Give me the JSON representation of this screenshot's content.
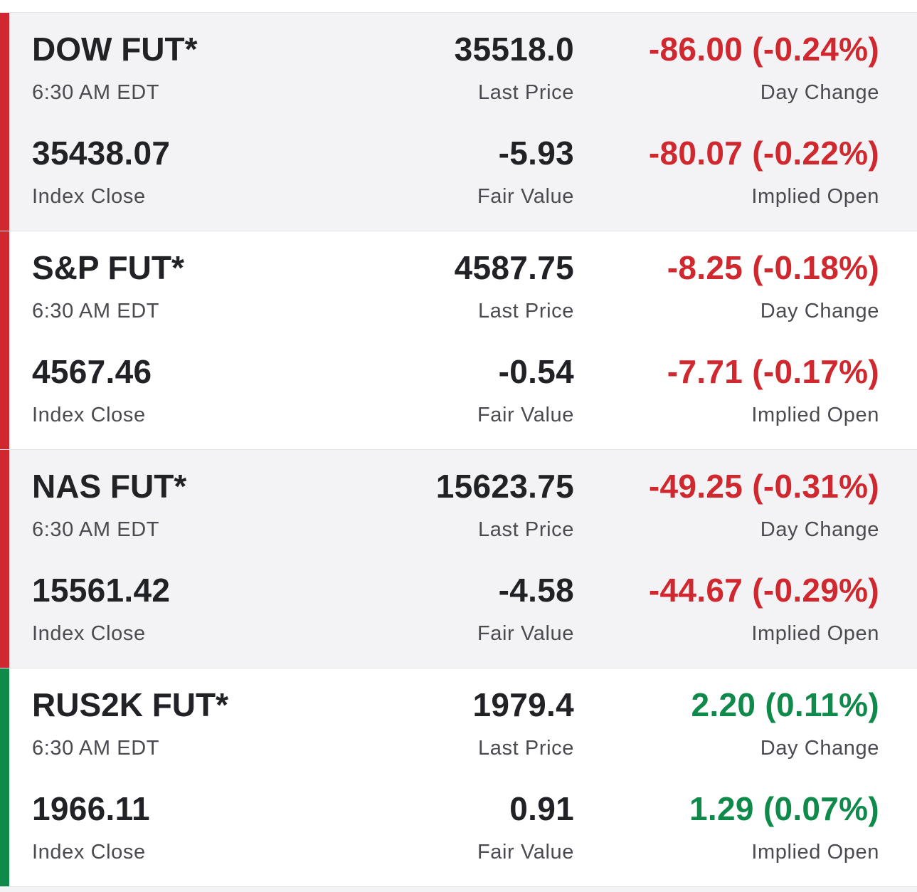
{
  "colors": {
    "negative": "#d0282f",
    "positive": "#0f8a4b"
  },
  "futures": [
    {
      "name": "DOW FUT*",
      "time": "6:30 AM EDT",
      "last_price": "35518.0",
      "last_price_label": "Last Price",
      "day_change": "-86.00 (-0.24%)",
      "day_change_label": "Day Change",
      "index_close": "35438.07",
      "index_close_label": "Index Close",
      "fair_value": "-5.93",
      "fair_value_label": "Fair Value",
      "implied_open": "-80.07 (-0.22%)",
      "implied_open_label": "Implied Open",
      "direction": "negative"
    },
    {
      "name": "S&P FUT*",
      "time": "6:30 AM EDT",
      "last_price": "4587.75",
      "last_price_label": "Last Price",
      "day_change": "-8.25 (-0.18%)",
      "day_change_label": "Day Change",
      "index_close": "4567.46",
      "index_close_label": "Index Close",
      "fair_value": "-0.54",
      "fair_value_label": "Fair Value",
      "implied_open": "-7.71 (-0.17%)",
      "implied_open_label": "Implied Open",
      "direction": "negative"
    },
    {
      "name": "NAS FUT*",
      "time": "6:30 AM EDT",
      "last_price": "15623.75",
      "last_price_label": "Last Price",
      "day_change": "-49.25 (-0.31%)",
      "day_change_label": "Day Change",
      "index_close": "15561.42",
      "index_close_label": "Index Close",
      "fair_value": "-4.58",
      "fair_value_label": "Fair Value",
      "implied_open": "-44.67 (-0.29%)",
      "implied_open_label": "Implied Open",
      "direction": "negative"
    },
    {
      "name": "RUS2K FUT*",
      "time": "6:30 AM EDT",
      "last_price": "1979.4",
      "last_price_label": "Last Price",
      "day_change": "2.20 (0.11%)",
      "day_change_label": "Day Change",
      "index_close": "1966.11",
      "index_close_label": "Index Close",
      "fair_value": "0.91",
      "fair_value_label": "Fair Value",
      "implied_open": "1.29 (0.07%)",
      "implied_open_label": "Implied Open",
      "direction": "positive"
    }
  ]
}
